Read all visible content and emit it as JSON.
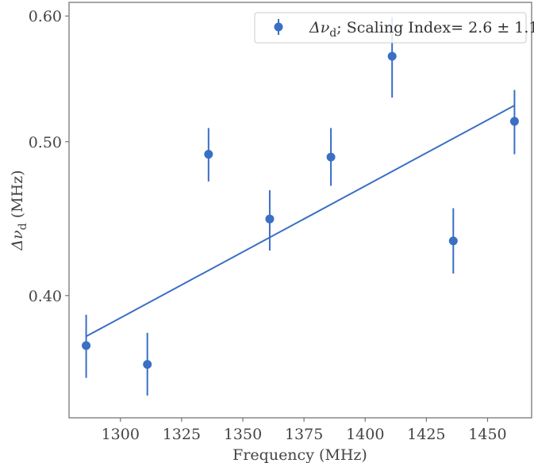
{
  "chart_data": {
    "type": "scatter",
    "xlabel": "Frequency (MHz)",
    "ylabel_symbol": "Δν",
    "ylabel_subscript": "d",
    "ylabel_unit": " (MHz)",
    "y_scale": "log",
    "xlim": [
      1279,
      1468
    ],
    "ylim": [
      0.335,
      0.612
    ],
    "x_ticks": [
      1300,
      1325,
      1350,
      1375,
      1400,
      1425,
      1450
    ],
    "y_ticks": [
      0.4,
      0.5,
      0.6
    ],
    "x_tick_labels": [
      "1300",
      "1325",
      "1350",
      "1375",
      "1400",
      "1425",
      "1450"
    ],
    "y_tick_labels": [
      "0.40",
      "0.50",
      "0.60"
    ],
    "grid": false,
    "legend": {
      "position": "top-right",
      "symbol": "Δν",
      "subscript": "d",
      "text": "; Scaling Index= 2.6 ± 1.1"
    },
    "series": [
      {
        "kind": "errorbar-points",
        "color": "#3a6fc4",
        "points": [
          {
            "x": 1286,
            "y": 0.372,
            "y_low": 0.355,
            "y_high": 0.389
          },
          {
            "x": 1311,
            "y": 0.362,
            "y_low": 0.346,
            "y_high": 0.379
          },
          {
            "x": 1336,
            "y": 0.491,
            "y_low": 0.472,
            "y_high": 0.51
          },
          {
            "x": 1361,
            "y": 0.447,
            "y_low": 0.427,
            "y_high": 0.466
          },
          {
            "x": 1386,
            "y": 0.489,
            "y_low": 0.469,
            "y_high": 0.51
          },
          {
            "x": 1411,
            "y": 0.566,
            "y_low": 0.533,
            "y_high": 0.599
          },
          {
            "x": 1436,
            "y": 0.433,
            "y_low": 0.413,
            "y_high": 0.454
          },
          {
            "x": 1461,
            "y": 0.515,
            "y_low": 0.491,
            "y_high": 0.539
          }
        ]
      },
      {
        "kind": "fit-line",
        "color": "#3a6fc4",
        "x": [
          1286,
          1461
        ],
        "y": [
          0.377,
          0.527
        ]
      }
    ],
    "colors": {
      "points": "#3a6fc4",
      "axes": "#777777",
      "text": "#444444"
    }
  }
}
